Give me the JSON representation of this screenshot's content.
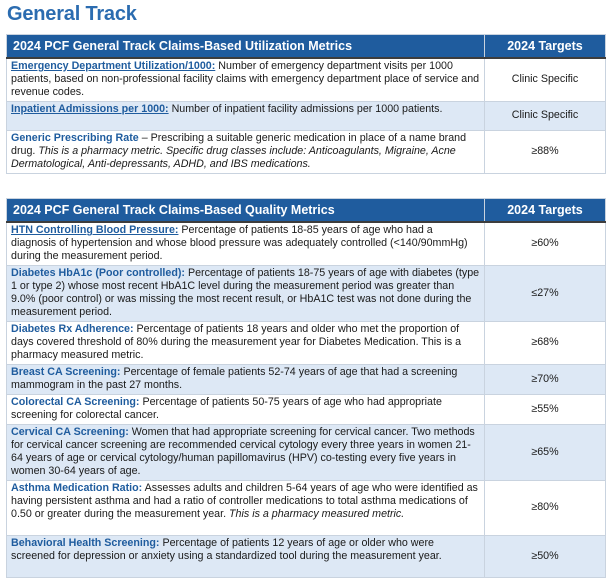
{
  "page": {
    "title": "General Track"
  },
  "utilization": {
    "header": "2024 PCF General Track Claims-Based Utilization Metrics",
    "target_header": "2024 Targets",
    "rows": [
      {
        "name": "Emergency Department Utilization/1000:",
        "desc": " Number of emergency department visits per 1000 patients, based on non-professional facility claims with emergency department place of service and revenue codes.",
        "desc_italic": "",
        "target": "Clinic Specific"
      },
      {
        "name": "Inpatient Admissions per 1000:",
        "desc": "  Number of inpatient facility admissions per 1000 patients.",
        "desc_italic": "",
        "target": "Clinic Specific"
      },
      {
        "name": "Generic Prescribing Rate",
        "desc": " – Prescribing a suitable generic medication in place of a name brand drug. ",
        "desc_italic": "This is a pharmacy metric. Specific drug classes include: Anticoagulants, Migraine, Acne Dermatological, Anti-depressants, ADHD, and IBS medications.",
        "target": "≥88%"
      }
    ]
  },
  "quality": {
    "header": "2024 PCF General Track Claims-Based Quality Metrics",
    "target_header": "2024 Targets",
    "rows": [
      {
        "name": "HTN Controlling Blood Pressure:",
        "desc": " Percentage of patients 18-85 years of age who had a diagnosis of hypertension and whose blood pressure was adequately controlled (<140/90mmHg) during the measurement period.",
        "desc_italic": "",
        "target": "≥60%"
      },
      {
        "name": "Diabetes HbA1c (Poor controlled):",
        "desc": " Percentage of patients 18-75 years of age with diabetes (type 1 or type 2) whose most recent HbA1C level during the measurement period was greater than 9.0% (poor control) or was missing the most recent result, or HbA1C test was not done during the measurement period.",
        "desc_italic": "",
        "target": "≤27%"
      },
      {
        "name": "Diabetes Rx Adherence:",
        "desc": " Percentage of patients 18 years and older who met the proportion of days covered threshold of 80% during the measurement year for Diabetes Medication. This is a pharmacy measured metric.",
        "desc_italic": "",
        "target": "≥68%"
      },
      {
        "name": "Breast CA Screening:",
        "desc": " Percentage of female patients 52-74 years of age that had a screening mammogram in the past 27 months.",
        "desc_italic": "",
        "target": "≥70%"
      },
      {
        "name": "Colorectal CA Screening:",
        "desc": " Percentage of patients 50-75 years of age who had appropriate screening for colorectal cancer.",
        "desc_italic": "",
        "target": "≥55%"
      },
      {
        "name": "Cervical CA Screening:",
        "desc": " Women that had appropriate screening for cervical cancer. Two methods for cervical cancer screening are recommended cervical cytology every three years in women 21-64 years of age or cervical cytology/human papillomavirus (HPV) co-testing every five years in women 30-64 years of age.",
        "desc_italic": "",
        "target": "≥65%"
      },
      {
        "name": "Asthma Medication Ratio:",
        "desc": " Assesses adults and children 5-64 years of age who were identified as having persistent asthma and had a ratio of controller medications to total asthma medications of 0.50 or greater during the measurement year. ",
        "desc_italic": "This is a pharmacy measured metric.",
        "target": "≥80%"
      },
      {
        "name": "Behavioral Health Screening:",
        "desc": " Percentage of patients 12 years of age or older who were screened for depression or anxiety using a standardized tool during the measurement year.",
        "desc_italic": "",
        "target": "≥50%"
      }
    ]
  }
}
